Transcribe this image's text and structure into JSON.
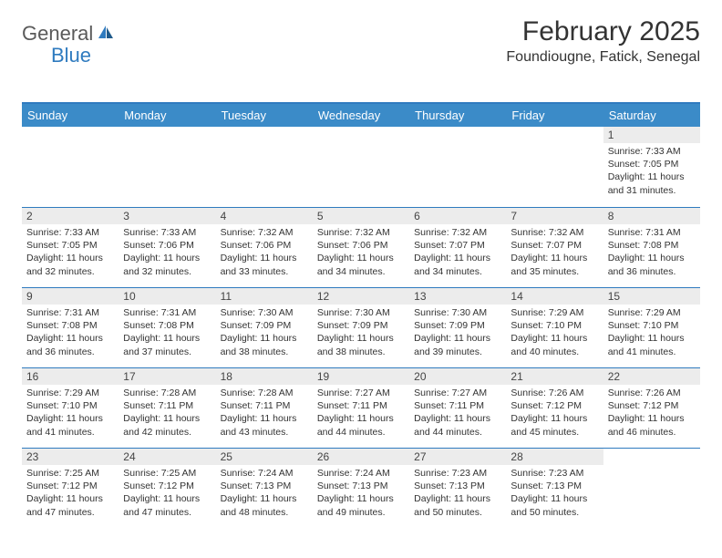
{
  "logo": {
    "text1": "General",
    "text2": "Blue"
  },
  "header": {
    "month_title": "February 2025",
    "location": "Foundiougne, Fatick, Senegal"
  },
  "colors": {
    "header_bg": "#3b8bc8",
    "rule": "#2f7bbf",
    "daynum_bg": "#ececec"
  },
  "day_names": [
    "Sunday",
    "Monday",
    "Tuesday",
    "Wednesday",
    "Thursday",
    "Friday",
    "Saturday"
  ],
  "weeks": [
    [
      {
        "n": "",
        "sr": "",
        "ss": "",
        "dl": ""
      },
      {
        "n": "",
        "sr": "",
        "ss": "",
        "dl": ""
      },
      {
        "n": "",
        "sr": "",
        "ss": "",
        "dl": ""
      },
      {
        "n": "",
        "sr": "",
        "ss": "",
        "dl": ""
      },
      {
        "n": "",
        "sr": "",
        "ss": "",
        "dl": ""
      },
      {
        "n": "",
        "sr": "",
        "ss": "",
        "dl": ""
      },
      {
        "n": "1",
        "sr": "Sunrise: 7:33 AM",
        "ss": "Sunset: 7:05 PM",
        "dl": "Daylight: 11 hours and 31 minutes."
      }
    ],
    [
      {
        "n": "2",
        "sr": "Sunrise: 7:33 AM",
        "ss": "Sunset: 7:05 PM",
        "dl": "Daylight: 11 hours and 32 minutes."
      },
      {
        "n": "3",
        "sr": "Sunrise: 7:33 AM",
        "ss": "Sunset: 7:06 PM",
        "dl": "Daylight: 11 hours and 32 minutes."
      },
      {
        "n": "4",
        "sr": "Sunrise: 7:32 AM",
        "ss": "Sunset: 7:06 PM",
        "dl": "Daylight: 11 hours and 33 minutes."
      },
      {
        "n": "5",
        "sr": "Sunrise: 7:32 AM",
        "ss": "Sunset: 7:06 PM",
        "dl": "Daylight: 11 hours and 34 minutes."
      },
      {
        "n": "6",
        "sr": "Sunrise: 7:32 AM",
        "ss": "Sunset: 7:07 PM",
        "dl": "Daylight: 11 hours and 34 minutes."
      },
      {
        "n": "7",
        "sr": "Sunrise: 7:32 AM",
        "ss": "Sunset: 7:07 PM",
        "dl": "Daylight: 11 hours and 35 minutes."
      },
      {
        "n": "8",
        "sr": "Sunrise: 7:31 AM",
        "ss": "Sunset: 7:08 PM",
        "dl": "Daylight: 11 hours and 36 minutes."
      }
    ],
    [
      {
        "n": "9",
        "sr": "Sunrise: 7:31 AM",
        "ss": "Sunset: 7:08 PM",
        "dl": "Daylight: 11 hours and 36 minutes."
      },
      {
        "n": "10",
        "sr": "Sunrise: 7:31 AM",
        "ss": "Sunset: 7:08 PM",
        "dl": "Daylight: 11 hours and 37 minutes."
      },
      {
        "n": "11",
        "sr": "Sunrise: 7:30 AM",
        "ss": "Sunset: 7:09 PM",
        "dl": "Daylight: 11 hours and 38 minutes."
      },
      {
        "n": "12",
        "sr": "Sunrise: 7:30 AM",
        "ss": "Sunset: 7:09 PM",
        "dl": "Daylight: 11 hours and 38 minutes."
      },
      {
        "n": "13",
        "sr": "Sunrise: 7:30 AM",
        "ss": "Sunset: 7:09 PM",
        "dl": "Daylight: 11 hours and 39 minutes."
      },
      {
        "n": "14",
        "sr": "Sunrise: 7:29 AM",
        "ss": "Sunset: 7:10 PM",
        "dl": "Daylight: 11 hours and 40 minutes."
      },
      {
        "n": "15",
        "sr": "Sunrise: 7:29 AM",
        "ss": "Sunset: 7:10 PM",
        "dl": "Daylight: 11 hours and 41 minutes."
      }
    ],
    [
      {
        "n": "16",
        "sr": "Sunrise: 7:29 AM",
        "ss": "Sunset: 7:10 PM",
        "dl": "Daylight: 11 hours and 41 minutes."
      },
      {
        "n": "17",
        "sr": "Sunrise: 7:28 AM",
        "ss": "Sunset: 7:11 PM",
        "dl": "Daylight: 11 hours and 42 minutes."
      },
      {
        "n": "18",
        "sr": "Sunrise: 7:28 AM",
        "ss": "Sunset: 7:11 PM",
        "dl": "Daylight: 11 hours and 43 minutes."
      },
      {
        "n": "19",
        "sr": "Sunrise: 7:27 AM",
        "ss": "Sunset: 7:11 PM",
        "dl": "Daylight: 11 hours and 44 minutes."
      },
      {
        "n": "20",
        "sr": "Sunrise: 7:27 AM",
        "ss": "Sunset: 7:11 PM",
        "dl": "Daylight: 11 hours and 44 minutes."
      },
      {
        "n": "21",
        "sr": "Sunrise: 7:26 AM",
        "ss": "Sunset: 7:12 PM",
        "dl": "Daylight: 11 hours and 45 minutes."
      },
      {
        "n": "22",
        "sr": "Sunrise: 7:26 AM",
        "ss": "Sunset: 7:12 PM",
        "dl": "Daylight: 11 hours and 46 minutes."
      }
    ],
    [
      {
        "n": "23",
        "sr": "Sunrise: 7:25 AM",
        "ss": "Sunset: 7:12 PM",
        "dl": "Daylight: 11 hours and 47 minutes."
      },
      {
        "n": "24",
        "sr": "Sunrise: 7:25 AM",
        "ss": "Sunset: 7:12 PM",
        "dl": "Daylight: 11 hours and 47 minutes."
      },
      {
        "n": "25",
        "sr": "Sunrise: 7:24 AM",
        "ss": "Sunset: 7:13 PM",
        "dl": "Daylight: 11 hours and 48 minutes."
      },
      {
        "n": "26",
        "sr": "Sunrise: 7:24 AM",
        "ss": "Sunset: 7:13 PM",
        "dl": "Daylight: 11 hours and 49 minutes."
      },
      {
        "n": "27",
        "sr": "Sunrise: 7:23 AM",
        "ss": "Sunset: 7:13 PM",
        "dl": "Daylight: 11 hours and 50 minutes."
      },
      {
        "n": "28",
        "sr": "Sunrise: 7:23 AM",
        "ss": "Sunset: 7:13 PM",
        "dl": "Daylight: 11 hours and 50 minutes."
      },
      {
        "n": "",
        "sr": "",
        "ss": "",
        "dl": ""
      }
    ]
  ]
}
